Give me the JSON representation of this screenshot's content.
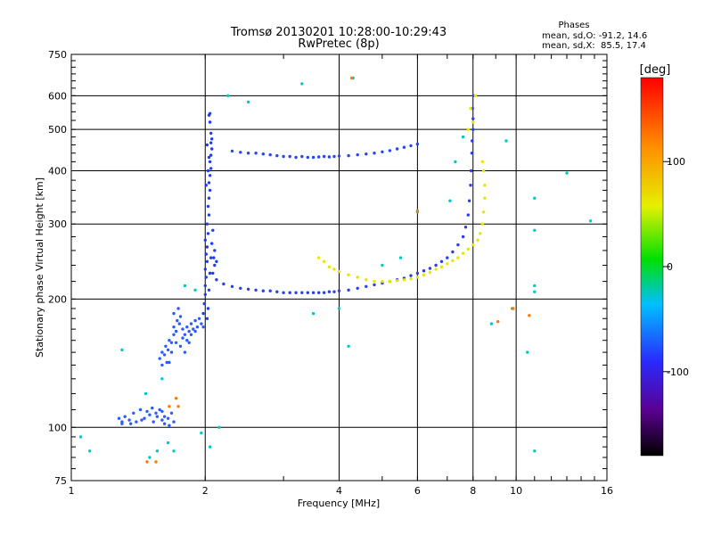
{
  "chart_data": {
    "type": "scatter",
    "title": "Tromsø 20130201 10:28:00-10:29:43",
    "subtitle": "RwPretec (8p)",
    "xlabel": "Frequency [MHz]",
    "ylabel": "Stationary phase Virtual Height [km]",
    "x_scale": "log",
    "y_scale": "log",
    "xlim": [
      1,
      16
    ],
    "ylim": [
      75,
      750
    ],
    "x_ticks": [
      1,
      2,
      4,
      6,
      8,
      10,
      16
    ],
    "x_tick_labels": [
      "1",
      "2",
      "4",
      "6",
      "8",
      "10",
      "16"
    ],
    "y_ticks": [
      75,
      100,
      200,
      300,
      400,
      500,
      600,
      750
    ],
    "y_tick_labels": [
      "75",
      "100",
      "200",
      "300",
      "400",
      "500",
      "600",
      "750"
    ],
    "grid": true,
    "stats": {
      "heading": "Phases",
      "line_o": "mean, sd,O: -91.2, 14.6",
      "line_x": "mean, sd,X:  85.5, 17.4"
    },
    "colorbar": {
      "label": "[deg]",
      "range": [
        -180,
        180
      ],
      "ticks": [
        100,
        0,
        -100
      ],
      "tick_labels": [
        "100",
        "0",
        "-100"
      ],
      "scale": "rainbow (black → violet → blue → cyan → green → yellow → orange → red)"
    },
    "series": [
      {
        "trace": "low-D-region",
        "phase_deg": -100,
        "color": "#2a5bff",
        "points": [
          [
            1.28,
            105
          ],
          [
            1.3,
            103
          ],
          [
            1.32,
            106
          ],
          [
            1.35,
            104
          ],
          [
            1.38,
            108
          ],
          [
            1.4,
            103
          ],
          [
            1.43,
            110
          ],
          [
            1.46,
            105
          ],
          [
            1.5,
            107
          ],
          [
            1.53,
            103
          ],
          [
            1.56,
            106
          ],
          [
            1.58,
            110
          ],
          [
            1.6,
            104
          ],
          [
            1.62,
            106
          ],
          [
            1.65,
            105
          ],
          [
            1.68,
            108
          ],
          [
            1.7,
            103
          ],
          [
            1.3,
            102
          ],
          [
            1.36,
            102
          ],
          [
            1.44,
            104
          ],
          [
            1.48,
            109
          ],
          [
            1.52,
            111
          ],
          [
            1.55,
            108
          ],
          [
            1.6,
            109
          ],
          [
            1.62,
            102
          ],
          [
            1.66,
            101
          ]
        ]
      },
      {
        "trace": "e-layer-1.6-2.0",
        "phase_deg": -100,
        "color": "#2a5bff",
        "points": [
          [
            1.58,
            145
          ],
          [
            1.6,
            150
          ],
          [
            1.62,
            148
          ],
          [
            1.63,
            155
          ],
          [
            1.65,
            152
          ],
          [
            1.66,
            160
          ],
          [
            1.68,
            158
          ],
          [
            1.7,
            165
          ],
          [
            1.7,
            172
          ],
          [
            1.72,
            168
          ],
          [
            1.73,
            178
          ],
          [
            1.75,
            175
          ],
          [
            1.76,
            182
          ],
          [
            1.78,
            170
          ],
          [
            1.8,
            165
          ],
          [
            1.82,
            172
          ],
          [
            1.84,
            168
          ],
          [
            1.86,
            175
          ],
          [
            1.88,
            170
          ],
          [
            1.9,
            178
          ],
          [
            1.92,
            172
          ],
          [
            1.94,
            180
          ],
          [
            1.96,
            175
          ],
          [
            1.98,
            172
          ],
          [
            1.7,
            185
          ],
          [
            1.74,
            190
          ],
          [
            1.78,
            162
          ],
          [
            1.82,
            160
          ],
          [
            1.86,
            165
          ],
          [
            1.9,
            168
          ],
          [
            1.66,
            142
          ],
          [
            1.68,
            150
          ],
          [
            1.72,
            158
          ],
          [
            1.76,
            155
          ],
          [
            1.8,
            150
          ],
          [
            1.84,
            158
          ],
          [
            1.6,
            140
          ],
          [
            1.64,
            142
          ]
        ]
      },
      {
        "trace": "vertical-spike-2.0",
        "phase_deg": -110,
        "color": "#1e3cf0",
        "points": [
          [
            1.98,
            185
          ],
          [
            1.99,
            195
          ],
          [
            2.0,
            205
          ],
          [
            2.0,
            215
          ],
          [
            2.01,
            225
          ],
          [
            2.0,
            235
          ],
          [
            2.02,
            245
          ],
          [
            2.01,
            255
          ],
          [
            2.02,
            265
          ],
          [
            2.0,
            275
          ],
          [
            2.03,
            285
          ],
          [
            2.02,
            300
          ],
          [
            2.04,
            315
          ],
          [
            2.03,
            330
          ],
          [
            2.04,
            345
          ],
          [
            2.05,
            360
          ],
          [
            2.04,
            375
          ],
          [
            2.05,
            390
          ],
          [
            2.06,
            405
          ],
          [
            2.05,
            420
          ],
          [
            2.06,
            435
          ],
          [
            2.07,
            450
          ],
          [
            2.06,
            465
          ],
          [
            2.07,
            475
          ],
          [
            2.06,
            490
          ],
          [
            2.05,
            520
          ],
          [
            2.04,
            540
          ],
          [
            2.05,
            545
          ],
          [
            2.02,
            180
          ],
          [
            2.03,
            190
          ],
          [
            2.04,
            210
          ],
          [
            2.05,
            230
          ],
          [
            2.06,
            250
          ],
          [
            2.07,
            270
          ],
          [
            2.08,
            290
          ],
          [
            2.09,
            250
          ],
          [
            2.1,
            240
          ],
          [
            2.08,
            230
          ],
          [
            2.1,
            260
          ],
          [
            2.12,
            245
          ],
          [
            2.01,
            370
          ],
          [
            2.03,
            400
          ],
          [
            2.04,
            430
          ],
          [
            2.02,
            460
          ]
        ]
      },
      {
        "trace": "f-layer-o-mode-lower",
        "phase_deg": -110,
        "color": "#2a3fe8",
        "points": [
          [
            2.05,
            230
          ],
          [
            2.12,
            222
          ],
          [
            2.2,
            217
          ],
          [
            2.3,
            214
          ],
          [
            2.4,
            212
          ],
          [
            2.5,
            211
          ],
          [
            2.6,
            210
          ],
          [
            2.7,
            209
          ],
          [
            2.8,
            209
          ],
          [
            2.9,
            208
          ],
          [
            3.0,
            207
          ],
          [
            3.1,
            207
          ],
          [
            3.2,
            207
          ],
          [
            3.3,
            207
          ],
          [
            3.4,
            207
          ],
          [
            3.5,
            207
          ],
          [
            3.6,
            207
          ],
          [
            3.7,
            207
          ],
          [
            3.8,
            208
          ],
          [
            3.9,
            208
          ],
          [
            4.0,
            209
          ],
          [
            4.2,
            210
          ],
          [
            4.4,
            212
          ],
          [
            4.6,
            214
          ],
          [
            4.8,
            216
          ],
          [
            5.0,
            218
          ],
          [
            5.2,
            220
          ],
          [
            5.4,
            222
          ],
          [
            5.6,
            224
          ],
          [
            5.8,
            227
          ],
          [
            6.0,
            230
          ],
          [
            6.2,
            233
          ],
          [
            6.4,
            236
          ],
          [
            6.6,
            240
          ],
          [
            6.8,
            245
          ],
          [
            7.0,
            250
          ],
          [
            7.2,
            258
          ],
          [
            7.4,
            268
          ],
          [
            7.6,
            280
          ],
          [
            7.7,
            295
          ],
          [
            7.8,
            315
          ],
          [
            7.85,
            340
          ],
          [
            7.9,
            370
          ],
          [
            7.92,
            400
          ],
          [
            7.95,
            440
          ],
          [
            7.96,
            470
          ],
          [
            8.0,
            500
          ],
          [
            8.0,
            530
          ],
          [
            7.98,
            560
          ],
          [
            8.02,
            600
          ]
        ]
      },
      {
        "trace": "f-layer-o-mode-upper",
        "phase_deg": -105,
        "color": "#2a45f0",
        "points": [
          [
            2.3,
            445
          ],
          [
            2.4,
            442
          ],
          [
            2.5,
            440
          ],
          [
            2.6,
            440
          ],
          [
            2.7,
            438
          ],
          [
            2.8,
            436
          ],
          [
            2.9,
            434
          ],
          [
            3.0,
            432
          ],
          [
            3.1,
            432
          ],
          [
            3.2,
            430
          ],
          [
            3.3,
            432
          ],
          [
            3.4,
            430
          ],
          [
            3.5,
            430
          ],
          [
            3.6,
            431
          ],
          [
            3.7,
            432
          ],
          [
            3.8,
            431
          ],
          [
            3.9,
            432
          ],
          [
            4.0,
            433
          ],
          [
            4.2,
            434
          ],
          [
            4.4,
            436
          ],
          [
            4.6,
            438
          ],
          [
            4.8,
            440
          ],
          [
            5.0,
            443
          ],
          [
            5.2,
            446
          ],
          [
            5.4,
            450
          ],
          [
            5.6,
            454
          ],
          [
            5.8,
            458
          ],
          [
            6.0,
            462
          ]
        ]
      },
      {
        "trace": "f-layer-x-mode",
        "phase_deg": 85,
        "color": "#e6e600",
        "points": [
          [
            3.6,
            250
          ],
          [
            3.7,
            245
          ],
          [
            3.8,
            238
          ],
          [
            3.9,
            235
          ],
          [
            4.0,
            232
          ],
          [
            4.2,
            228
          ],
          [
            4.4,
            225
          ],
          [
            4.6,
            222
          ],
          [
            4.8,
            220
          ],
          [
            5.0,
            220
          ],
          [
            5.2,
            220
          ],
          [
            5.4,
            221
          ],
          [
            5.6,
            222
          ],
          [
            5.8,
            223
          ],
          [
            6.0,
            225
          ],
          [
            6.2,
            228
          ],
          [
            6.4,
            231
          ],
          [
            6.6,
            235
          ],
          [
            6.8,
            238
          ],
          [
            7.0,
            242
          ],
          [
            7.2,
            246
          ],
          [
            7.4,
            250
          ],
          [
            7.6,
            256
          ],
          [
            7.8,
            262
          ],
          [
            8.0,
            268
          ],
          [
            8.2,
            275
          ],
          [
            8.3,
            285
          ],
          [
            8.4,
            300
          ],
          [
            8.45,
            320
          ],
          [
            8.5,
            345
          ],
          [
            8.5,
            370
          ],
          [
            8.45,
            400
          ],
          [
            8.4,
            420
          ],
          [
            7.6,
            480
          ],
          [
            7.8,
            500
          ],
          [
            8.0,
            520
          ],
          [
            7.9,
            560
          ],
          [
            8.1,
            600
          ]
        ]
      },
      {
        "trace": "scattered",
        "phase_deg": 0,
        "color": "#00c8c8",
        "points": [
          [
            1.05,
            95
          ],
          [
            1.1,
            88
          ],
          [
            1.3,
            152
          ],
          [
            1.47,
            120
          ],
          [
            1.5,
            85
          ],
          [
            1.56,
            88
          ],
          [
            1.6,
            130
          ],
          [
            1.65,
            92
          ],
          [
            1.7,
            88
          ],
          [
            1.8,
            215
          ],
          [
            1.9,
            210
          ],
          [
            1.96,
            97
          ],
          [
            2.05,
            90
          ],
          [
            2.15,
            100
          ],
          [
            2.25,
            600
          ],
          [
            2.5,
            580
          ],
          [
            3.3,
            640
          ],
          [
            3.5,
            185
          ],
          [
            4.0,
            190
          ],
          [
            4.2,
            155
          ],
          [
            4.3,
            660
          ],
          [
            5.0,
            240
          ],
          [
            5.5,
            250
          ],
          [
            6.0,
            320
          ],
          [
            7.1,
            340
          ],
          [
            7.3,
            420
          ],
          [
            7.6,
            480
          ],
          [
            8.8,
            175
          ],
          [
            9.5,
            470
          ],
          [
            9.8,
            190
          ],
          [
            10.6,
            150
          ],
          [
            11.0,
            345
          ],
          [
            11.0,
            290
          ],
          [
            11.0,
            215
          ],
          [
            11.0,
            208
          ],
          [
            11.0,
            88
          ],
          [
            13.0,
            395
          ],
          [
            14.7,
            305
          ]
        ]
      },
      {
        "trace": "scattered-orange",
        "phase_deg": 140,
        "color": "#ff7a00",
        "points": [
          [
            1.48,
            83
          ],
          [
            1.55,
            83
          ],
          [
            1.66,
            112
          ],
          [
            1.72,
            117
          ],
          [
            1.74,
            112
          ],
          [
            4.27,
            660
          ],
          [
            6.0,
            322
          ],
          [
            9.1,
            177
          ],
          [
            9.85,
            190
          ],
          [
            10.7,
            183
          ]
        ]
      }
    ]
  }
}
